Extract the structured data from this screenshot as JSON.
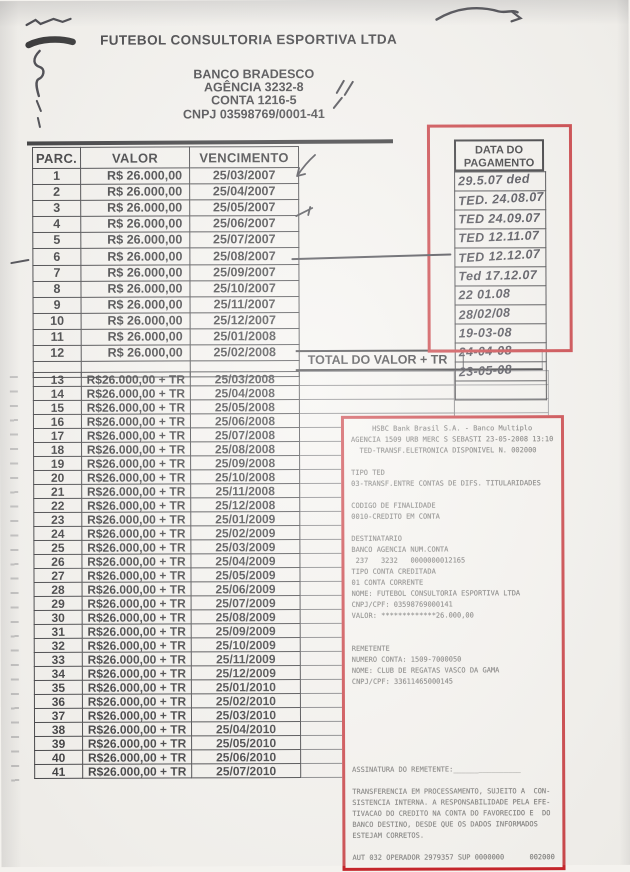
{
  "document": {
    "company": "FUTEBOL CONSULTORIA ESPORTIVA LTDA",
    "bank_name": "BANCO BRADESCO",
    "agency_line": "AGÊNCIA 3232-8",
    "account_line": "CONTA 1216-5",
    "cnpj_line": "CNPJ 03598769/0001-41"
  },
  "schedule": {
    "col_parc": "PARC.",
    "col_valor": "VALOR",
    "col_venc": "VENCIMENTO",
    "payment_col_header": "DATA DO PAGAMENTO",
    "total_label": "TOTAL DO VALOR + TR",
    "part1": [
      {
        "parc": "1",
        "valor": "R$ 26.000,00",
        "venc": "25/03/2007"
      },
      {
        "parc": "2",
        "valor": "R$ 26.000,00",
        "venc": "25/04/2007"
      },
      {
        "parc": "3",
        "valor": "R$ 26.000,00",
        "venc": "25/05/2007"
      },
      {
        "parc": "4",
        "valor": "R$ 26.000,00",
        "venc": "25/06/2007"
      },
      {
        "parc": "5",
        "valor": "R$ 26.000,00",
        "venc": "25/07/2007"
      },
      {
        "parc": "6",
        "valor": "R$ 26.000,00",
        "venc": "25/08/2007"
      },
      {
        "parc": "7",
        "valor": "R$ 26.000,00",
        "venc": "25/09/2007"
      },
      {
        "parc": "8",
        "valor": "R$ 26.000,00",
        "venc": "25/10/2007"
      },
      {
        "parc": "9",
        "valor": "R$ 26.000,00",
        "venc": "25/11/2007"
      },
      {
        "parc": "10",
        "valor": "R$ 26.000,00",
        "venc": "25/12/2007"
      },
      {
        "parc": "11",
        "valor": "R$ 26.000,00",
        "venc": "25/01/2008"
      },
      {
        "parc": "12",
        "valor": "R$ 26.000,00",
        "venc": "25/02/2008"
      }
    ],
    "payment_dates": [
      "29.5.07 ded",
      "TED. 24.08.07",
      "TED 24.09.07",
      "TED 12.11.07",
      "TED 12.12.07",
      "Ted 17.12.07",
      "22 01.08",
      "28/02/08",
      "19-03-08",
      "24-04-08",
      "23-05-08",
      ""
    ],
    "part2": [
      {
        "parc": "13",
        "valor": "R$26.000,00 + TR",
        "venc": "25/03/2008"
      },
      {
        "parc": "14",
        "valor": "R$26.000,00 + TR",
        "venc": "25/04/2008"
      },
      {
        "parc": "15",
        "valor": "R$26.000,00 + TR",
        "venc": "25/05/2008"
      },
      {
        "parc": "16",
        "valor": "R$26.000,00 + TR",
        "venc": "25/06/2008"
      },
      {
        "parc": "17",
        "valor": "R$26.000,00 + TR",
        "venc": "25/07/2008"
      },
      {
        "parc": "18",
        "valor": "R$26.000,00 + TR",
        "venc": "25/08/2008"
      },
      {
        "parc": "19",
        "valor": "R$26.000,00 + TR",
        "venc": "25/09/2008"
      },
      {
        "parc": "20",
        "valor": "R$26.000,00 + TR",
        "venc": "25/10/2008"
      },
      {
        "parc": "21",
        "valor": "R$26.000,00 + TR",
        "venc": "25/11/2008"
      },
      {
        "parc": "22",
        "valor": "R$26.000,00 + TR",
        "venc": "25/12/2008"
      },
      {
        "parc": "23",
        "valor": "R$26.000,00 + TR",
        "venc": "25/01/2009"
      },
      {
        "parc": "24",
        "valor": "R$26.000,00 + TR",
        "venc": "25/02/2009"
      },
      {
        "parc": "25",
        "valor": "R$26.000,00 + TR",
        "venc": "25/03/2009"
      },
      {
        "parc": "26",
        "valor": "R$26.000,00 + TR",
        "venc": "25/04/2009"
      },
      {
        "parc": "27",
        "valor": "R$26.000,00 + TR",
        "venc": "25/05/2009"
      },
      {
        "parc": "28",
        "valor": "R$26.000,00 + TR",
        "venc": "25/06/2009"
      },
      {
        "parc": "29",
        "valor": "R$26.000,00 + TR",
        "venc": "25/07/2009"
      },
      {
        "parc": "30",
        "valor": "R$26.000,00 + TR",
        "venc": "25/08/2009"
      },
      {
        "parc": "31",
        "valor": "R$26.000,00 + TR",
        "venc": "25/09/2009"
      },
      {
        "parc": "32",
        "valor": "R$26.000,00 + TR",
        "venc": "25/10/2009"
      },
      {
        "parc": "33",
        "valor": "R$26.000,00 + TR",
        "venc": "25/11/2009"
      },
      {
        "parc": "34",
        "valor": "R$26.000,00 + TR",
        "venc": "25/12/2009"
      },
      {
        "parc": "35",
        "valor": "R$26.000,00 + TR",
        "venc": "25/01/2010"
      },
      {
        "parc": "36",
        "valor": "R$26.000,00 + TR",
        "venc": "25/02/2010"
      },
      {
        "parc": "37",
        "valor": "R$26.000,00 + TR",
        "venc": "25/03/2010"
      },
      {
        "parc": "38",
        "valor": "R$26.000,00 + TR",
        "venc": "25/04/2010"
      },
      {
        "parc": "39",
        "valor": "R$26.000,00 + TR",
        "venc": "25/05/2010"
      },
      {
        "parc": "40",
        "valor": "R$26.000,00 + TR",
        "venc": "25/06/2010"
      },
      {
        "parc": "41",
        "valor": "R$26.000,00 + TR",
        "venc": "25/07/2010"
      }
    ]
  },
  "receipt": {
    "lines": [
      "     HSBC Bank Brasil S.A. - Banco Multiplo",
      "AGENCIA 1509 URB MERC S SEBASTI 23-05-2008 13:10",
      "  TED-TRANSF.ELETRONICA DISPONIVEL N. 002000",
      "",
      "TIPO TED",
      "03-TRANSF.ENTRE CONTAS DE DIFS. TITULARIDADES",
      "",
      "CODIGO DE FINALIDADE",
      "0010-CREDITO EM CONTA",
      "",
      "DESTINATARIO",
      "BANCO AGENCIA NUM.CONTA",
      " 237   3232   0000000012165",
      "TIPO CONTA CREDITADA",
      "01 CONTA CORRENTE",
      "NOME: FUTEBOL CONSULTORIA ESPORTIVA LTDA",
      "CNPJ/CPF: 03598769000141",
      "VALOR: *************26.000,00",
      "",
      "",
      "REMETENTE",
      "NUMERO CONTA: 1509-7000050",
      "NOME: CLUB DE REGATAS VASCO DA GAMA",
      "CNPJ/CPF: 33611465000145",
      "",
      "",
      "",
      "",
      "",
      "",
      "",
      "ASSINATURA DO REMETENTE:________________",
      "",
      "TRANSFERENCIA EM PROCESSAMENTO, SUJEITO A  CON-",
      "SISTENCIA INTERNA. A RESPONSABILIDADE PELA EFE-",
      "TIVACAO DO CREDITO NA CONTA DO FAVORECIDO E  DO",
      "BANCO DESTINO, DESDE QUE OS DADOS INFORMADOS",
      "ESTEJAM CORRETOS.",
      "",
      "AUT 032 OPERADOR 2979357 SUP 0000000      002000"
    ]
  }
}
